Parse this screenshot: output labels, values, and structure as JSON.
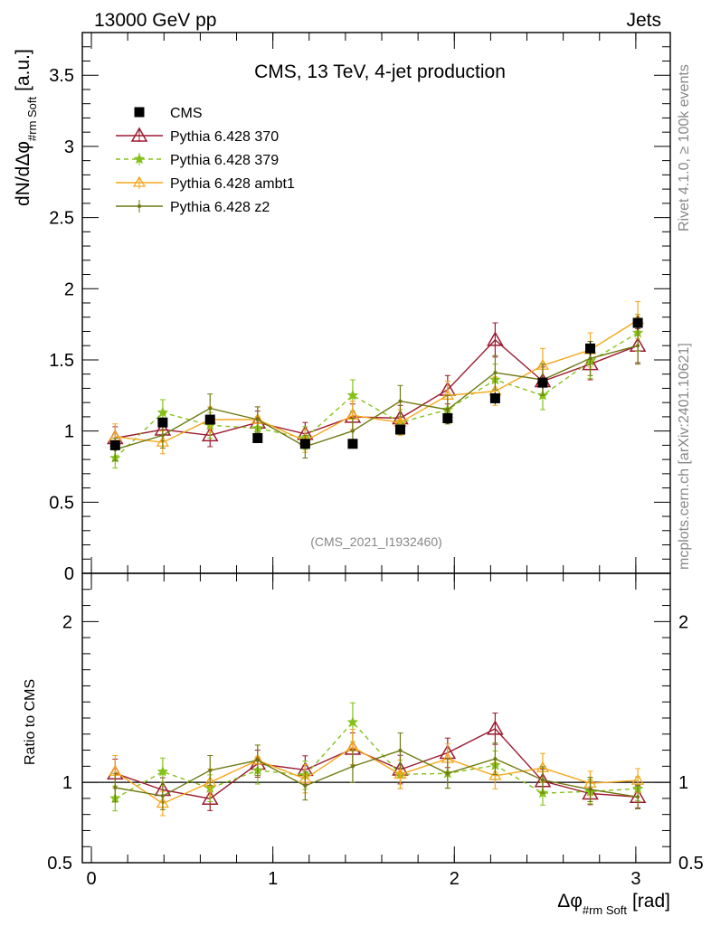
{
  "header": {
    "left": "13000 GeV pp",
    "right": "Jets"
  },
  "side_text": {
    "rivet": "Rivet 4.1.0, ≥ 100k events",
    "mcplots": "mcplots.cern.ch [arXiv:2401.10621]"
  },
  "chart_data": {
    "type": "line",
    "title": "CMS, 13 TeV, 4-jet production",
    "watermark": "(CMS_2021_I1932460)",
    "ylabel": "dN/dΔφ",
    "ylabel_sub": "#rm Soft",
    "ylabel_unit": "[a.u.]",
    "xlabel": "Δφ",
    "xlabel_sub": "#rm Soft",
    "xlabel_unit": "[rad]",
    "ratio_ylabel": "Ratio to CMS",
    "xlim": [
      -0.05,
      3.19
    ],
    "ylim": [
      0,
      3.8
    ],
    "ratio_ylim": [
      0.5,
      2.3
    ],
    "x_ticks": [
      0,
      1,
      2,
      3
    ],
    "x_tick_labels": [
      "0",
      "1",
      "2",
      "3"
    ],
    "y_ticks": [
      0,
      0.5,
      1,
      1.5,
      2,
      2.5,
      3,
      3.5
    ],
    "y_tick_labels": [
      "0",
      "0.5",
      "1",
      "1.5",
      "2",
      "2.5",
      "3",
      "3.5"
    ],
    "ratio_ticks": [
      0.5,
      1,
      2
    ],
    "ratio_tick_labels": [
      "0.5",
      "1",
      "2"
    ],
    "x": [
      0.131,
      0.393,
      0.654,
      0.916,
      1.178,
      1.44,
      1.702,
      1.963,
      2.225,
      2.487,
      2.749,
      3.011
    ],
    "data": {
      "name": "CMS",
      "values": [
        0.9,
        1.06,
        1.08,
        0.95,
        0.91,
        0.91,
        1.01,
        1.09,
        1.23,
        1.34,
        1.58,
        1.76
      ],
      "errors": [
        0.03,
        0.03,
        0.03,
        0.03,
        0.03,
        0.03,
        0.03,
        0.04,
        0.04,
        0.04,
        0.05,
        0.05
      ]
    },
    "series": [
      {
        "name": "Pythia 6.428 370",
        "color": "#9b1b30",
        "style": "solid",
        "marker": "open-triangle",
        "values": [
          0.95,
          1.01,
          0.97,
          1.06,
          0.98,
          1.1,
          1.09,
          1.29,
          1.64,
          1.35,
          1.47,
          1.6
        ],
        "errors": [
          0.08,
          0.08,
          0.08,
          0.08,
          0.08,
          0.09,
          0.09,
          0.1,
          0.12,
          0.1,
          0.11,
          0.12
        ]
      },
      {
        "name": "Pythia 6.428 379",
        "color": "#84c21a",
        "style": "dashed",
        "marker": "star",
        "values": [
          0.81,
          1.13,
          1.04,
          1.02,
          0.95,
          1.25,
          1.06,
          1.15,
          1.36,
          1.25,
          1.49,
          1.69
        ],
        "errors": [
          0.07,
          0.09,
          0.09,
          0.08,
          0.08,
          0.11,
          0.09,
          0.1,
          0.11,
          0.1,
          0.12,
          0.13
        ]
      },
      {
        "name": "Pythia 6.428 ambt1",
        "color": "#f5a71b",
        "style": "solid",
        "marker": "open-triangle-small",
        "values": [
          0.96,
          0.92,
          1.08,
          1.08,
          0.93,
          1.11,
          1.06,
          1.25,
          1.28,
          1.46,
          1.57,
          1.78
        ],
        "errors": [
          0.09,
          0.08,
          0.09,
          0.09,
          0.08,
          0.1,
          0.09,
          0.1,
          0.1,
          0.12,
          0.12,
          0.13
        ]
      },
      {
        "name": "Pythia 6.428 z2",
        "color": "#6f7a12",
        "style": "solid",
        "marker": "dot",
        "values": [
          0.87,
          0.97,
          1.16,
          1.08,
          0.89,
          1.0,
          1.21,
          1.15,
          1.41,
          1.36,
          1.51,
          1.6
        ],
        "errors": [
          0.08,
          0.09,
          0.1,
          0.09,
          0.08,
          0.09,
          0.11,
          0.1,
          0.12,
          0.11,
          0.12,
          0.13
        ]
      }
    ]
  }
}
